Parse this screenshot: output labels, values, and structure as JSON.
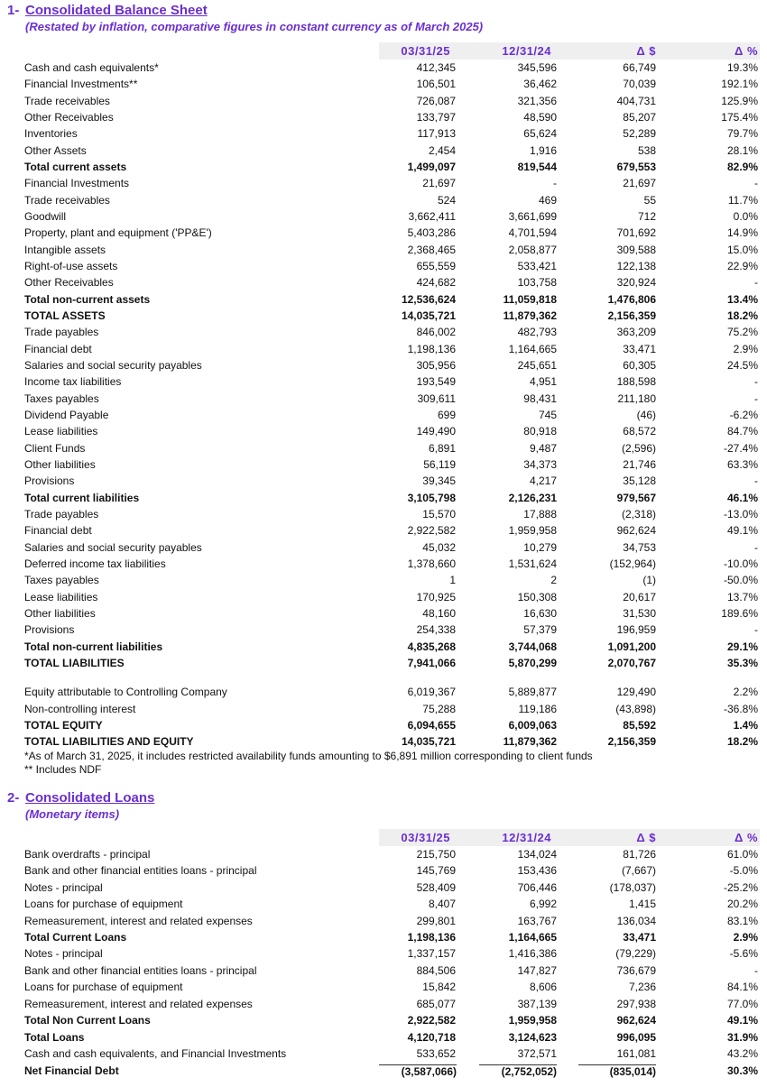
{
  "sections": [
    {
      "number": "1-",
      "title": "Consolidated Balance Sheet",
      "subtitle": "(Restated by inflation, comparative figures in constant currency as of March 2025)",
      "columns": [
        "03/31/25",
        "12/31/24",
        "Δ $",
        "Δ %"
      ],
      "blocks": [
        [
          {
            "cells": [
              "Cash and cash equivalents*",
              "412,345",
              "345,596",
              "66,749",
              "19.3%"
            ]
          },
          {
            "cells": [
              "Financial Investments**",
              "106,501",
              "36,462",
              "70,039",
              "192.1%"
            ]
          },
          {
            "cells": [
              "Trade receivables",
              "726,087",
              "321,356",
              "404,731",
              "125.9%"
            ]
          },
          {
            "cells": [
              "Other Receivables",
              "133,797",
              "48,590",
              "85,207",
              "175.4%"
            ]
          },
          {
            "cells": [
              "Inventories",
              "117,913",
              "65,624",
              "52,289",
              "79.7%"
            ]
          },
          {
            "cells": [
              "Other Assets",
              "2,454",
              "1,916",
              "538",
              "28.1%"
            ]
          },
          {
            "cells": [
              "Total current assets",
              "1,499,097",
              "819,544",
              "679,553",
              "82.9%"
            ],
            "bold": true
          },
          {
            "cells": [
              "Financial Investments",
              "21,697",
              "-",
              "21,697",
              "-"
            ]
          },
          {
            "cells": [
              "Trade receivables",
              "524",
              "469",
              "55",
              "11.7%"
            ]
          },
          {
            "cells": [
              "Goodwill",
              "3,662,411",
              "3,661,699",
              "712",
              "0.0%"
            ]
          },
          {
            "cells": [
              "Property, plant and equipment ('PP&E')",
              "5,403,286",
              "4,701,594",
              "701,692",
              "14.9%"
            ]
          },
          {
            "cells": [
              "Intangible assets",
              "2,368,465",
              "2,058,877",
              "309,588",
              "15.0%"
            ]
          },
          {
            "cells": [
              "Right-of-use assets",
              "655,559",
              "533,421",
              "122,138",
              "22.9%"
            ]
          },
          {
            "cells": [
              "Other Receivables",
              "424,682",
              "103,758",
              "320,924",
              "-"
            ]
          },
          {
            "cells": [
              "Total non-current assets",
              "12,536,624",
              "11,059,818",
              "1,476,806",
              "13.4%"
            ],
            "bold": true
          },
          {
            "cells": [
              "TOTAL ASSETS",
              "14,035,721",
              "11,879,362",
              "2,156,359",
              "18.2%"
            ],
            "bold": true
          },
          {
            "cells": [
              "Trade payables",
              "846,002",
              "482,793",
              "363,209",
              "75.2%"
            ]
          },
          {
            "cells": [
              "Financial debt",
              "1,198,136",
              "1,164,665",
              "33,471",
              "2.9%"
            ]
          },
          {
            "cells": [
              "Salaries and social security payables",
              "305,956",
              "245,651",
              "60,305",
              "24.5%"
            ]
          },
          {
            "cells": [
              "Income tax liabilities",
              "193,549",
              "4,951",
              "188,598",
              "-"
            ]
          },
          {
            "cells": [
              "Taxes payables",
              "309,611",
              "98,431",
              "211,180",
              "-"
            ]
          },
          {
            "cells": [
              "Dividend Payable",
              "699",
              "745",
              "(46)",
              "-6.2%"
            ]
          },
          {
            "cells": [
              "Lease liabilities",
              "149,490",
              "80,918",
              "68,572",
              "84.7%"
            ]
          },
          {
            "cells": [
              "Client Funds",
              "6,891",
              "9,487",
              "(2,596)",
              "-27.4%"
            ]
          },
          {
            "cells": [
              "Other liabilities",
              "56,119",
              "34,373",
              "21,746",
              "63.3%"
            ]
          },
          {
            "cells": [
              "Provisions",
              "39,345",
              "4,217",
              "35,128",
              "-"
            ]
          },
          {
            "cells": [
              "Total current liabilities",
              "3,105,798",
              "2,126,231",
              "979,567",
              "46.1%"
            ],
            "bold": true
          },
          {
            "cells": [
              "Trade payables",
              "15,570",
              "17,888",
              "(2,318)",
              "-13.0%"
            ]
          },
          {
            "cells": [
              "Financial debt",
              "2,922,582",
              "1,959,958",
              "962,624",
              "49.1%"
            ]
          },
          {
            "cells": [
              "Salaries and social security payables",
              "45,032",
              "10,279",
              "34,753",
              "-"
            ]
          },
          {
            "cells": [
              "Deferred income tax liabilities",
              "1,378,660",
              "1,531,624",
              "(152,964)",
              "-10.0%"
            ]
          },
          {
            "cells": [
              "Taxes payables",
              "1",
              "2",
              "(1)",
              "-50.0%"
            ]
          },
          {
            "cells": [
              "Lease liabilities",
              "170,925",
              "150,308",
              "20,617",
              "13.7%"
            ]
          },
          {
            "cells": [
              "Other liabilities",
              "48,160",
              "16,630",
              "31,530",
              "189.6%"
            ]
          },
          {
            "cells": [
              "Provisions",
              "254,338",
              "57,379",
              "196,959",
              "-"
            ]
          },
          {
            "cells": [
              "Total non-current liabilities",
              "4,835,268",
              "3,744,068",
              "1,091,200",
              "29.1%"
            ],
            "bold": true
          },
          {
            "cells": [
              "TOTAL LIABILITIES",
              "7,941,066",
              "5,870,299",
              "2,070,767",
              "35.3%"
            ],
            "bold": true
          }
        ],
        [
          {
            "cells": [
              "Equity attributable to Controlling Company",
              "6,019,367",
              "5,889,877",
              "129,490",
              "2.2%"
            ]
          },
          {
            "cells": [
              "Non-controlling interest",
              "75,288",
              "119,186",
              "(43,898)",
              "-36.8%"
            ]
          },
          {
            "cells": [
              "TOTAL EQUITY",
              "6,094,655",
              "6,009,063",
              "85,592",
              "1.4%"
            ],
            "bold": true
          },
          {
            "cells": [
              "TOTAL LIABILITIES AND EQUITY",
              "14,035,721",
              "11,879,362",
              "2,156,359",
              "18.2%"
            ],
            "bold": true
          }
        ]
      ],
      "footnotes": [
        "*As of March 31, 2025, it includes restricted availability funds amounting to $6,891 million corresponding to client funds",
        "** Includes NDF"
      ]
    },
    {
      "number": "2-",
      "title": "Consolidated Loans",
      "subtitle": "(Monetary items)",
      "columns": [
        "03/31/25",
        "12/31/24",
        "Δ $",
        "Δ %"
      ],
      "blocks": [
        [
          {
            "cells": [
              "Bank overdrafts - principal",
              "215,750",
              "134,024",
              "81,726",
              "61.0%"
            ]
          },
          {
            "cells": [
              "Bank and other financial entities loans - principal",
              "145,769",
              "153,436",
              "(7,667)",
              "-5.0%"
            ]
          },
          {
            "cells": [
              "Notes - principal",
              "528,409",
              "706,446",
              "(178,037)",
              "-25.2%"
            ]
          },
          {
            "cells": [
              "Loans for purchase of equipment",
              "8,407",
              "6,992",
              "1,415",
              "20.2%"
            ]
          },
          {
            "cells": [
              "Remeasurement, interest and related expenses",
              "299,801",
              "163,767",
              "136,034",
              "83.1%"
            ]
          },
          {
            "cells": [
              "Total Current Loans",
              "1,198,136",
              "1,164,665",
              "33,471",
              "2.9%"
            ],
            "bold": true
          },
          {
            "cells": [
              "Notes - principal",
              "1,337,157",
              "1,416,386",
              "(79,229)",
              "-5.6%"
            ]
          },
          {
            "cells": [
              "Bank and other financial entities loans - principal",
              "884,506",
              "147,827",
              "736,679",
              "-"
            ]
          },
          {
            "cells": [
              "Loans for purchase of equipment",
              "15,842",
              "8,606",
              "7,236",
              "84.1%"
            ]
          },
          {
            "cells": [
              "Remeasurement, interest and related expenses",
              "685,077",
              "387,139",
              "297,938",
              "77.0%"
            ]
          },
          {
            "cells": [
              "Total Non Current Loans",
              "2,922,582",
              "1,959,958",
              "962,624",
              "49.1%"
            ],
            "bold": true
          },
          {
            "cells": [
              "Total Loans",
              "4,120,718",
              "3,124,623",
              "996,095",
              "31.9%"
            ],
            "bold": true
          },
          {
            "cells": [
              "Cash and cash equivalents, and Financial Investments",
              "533,652",
              "372,571",
              "161,081",
              "43.2%"
            ]
          },
          {
            "cells": [
              "Net Financial Debt",
              "(3,587,066)",
              "(2,752,052)",
              "(835,014)",
              "30.3%"
            ],
            "bold": true
          }
        ]
      ]
    }
  ]
}
